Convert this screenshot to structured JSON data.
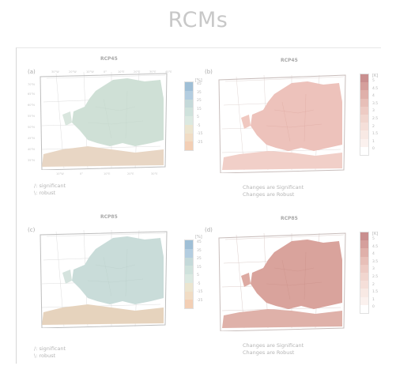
{
  "header": {
    "title": "RCMs"
  },
  "panels": [
    {
      "letter": "(a)",
      "scenario": "RCP45",
      "unit": "[%]",
      "colorbar": [
        "45",
        "35",
        "25",
        "15",
        "5",
        "-5",
        "-15",
        "-25"
      ],
      "colorbar_colors": [
        "#9fbfd6",
        "#b3cde0",
        "#c4d9d9",
        "#cfe2dc",
        "#dbe9e1",
        "#ece5cf",
        "#f1dcc4",
        "#f3cfb5"
      ],
      "note": [
        "/: significant",
        "\\: robust"
      ]
    },
    {
      "letter": "(b)",
      "scenario": "RCP45",
      "unit": "[K]",
      "colorbar": [
        "5",
        "4.5",
        "4",
        "3.5",
        "3",
        "2.5",
        "2",
        "1.5",
        "1",
        "0"
      ],
      "colorbar_colors": [
        "#c98f8f",
        "#d59f9c",
        "#dfb0aa",
        "#e7bfb8",
        "#edcbc4",
        "#f1d6cf",
        "#f5dfd9",
        "#f8e9e4",
        "#fbf1ee",
        "#ffffff"
      ],
      "note": [
        "Changes are Significant",
        "Changes are Robust"
      ]
    },
    {
      "letter": "(c)",
      "scenario": "RCP85",
      "unit": "[%]",
      "colorbar": [
        "45",
        "35",
        "25",
        "15",
        "5",
        "-5",
        "-15",
        "-25"
      ],
      "colorbar_colors": [
        "#9fbfd6",
        "#b3cde0",
        "#c4d9d9",
        "#cfe2dc",
        "#dbe9e1",
        "#ece5cf",
        "#f1dcc4",
        "#f3cfb5"
      ],
      "note": [
        "/: significant",
        "\\: robust"
      ]
    },
    {
      "letter": "(d)",
      "scenario": "RCP85",
      "unit": "[K]",
      "colorbar": [
        "5",
        "4.5",
        "4",
        "3.5",
        "3",
        "2.5",
        "2",
        "1.5",
        "1",
        "0"
      ],
      "colorbar_colors": [
        "#c98f8f",
        "#d59f9c",
        "#dfb0aa",
        "#e7bfb8",
        "#edcbc4",
        "#f1d6cf",
        "#f5dfd9",
        "#f8e9e4",
        "#fbf1ee",
        "#ffffff"
      ],
      "note": [
        "Changes are Significant",
        "Changes are Robust"
      ]
    }
  ],
  "map_ticks": {
    "top": [
      "30°W",
      "20°W",
      "10°W",
      "0°",
      "10°E",
      "20°E",
      "30°E",
      "40°E"
    ],
    "left": [
      "70°N",
      "65°N",
      "60°N",
      "55°N",
      "50°N",
      "45°N",
      "40°N",
      "35°N"
    ],
    "bottom": [
      "10°W",
      "0°",
      "10°E",
      "20°E",
      "30°E"
    ]
  },
  "colors": {
    "precip_land": "#cfe0d6",
    "precip_south": "#e8d6c4",
    "temp_land_45": "#edc2bb",
    "temp_land_85": "#d9a39c"
  }
}
